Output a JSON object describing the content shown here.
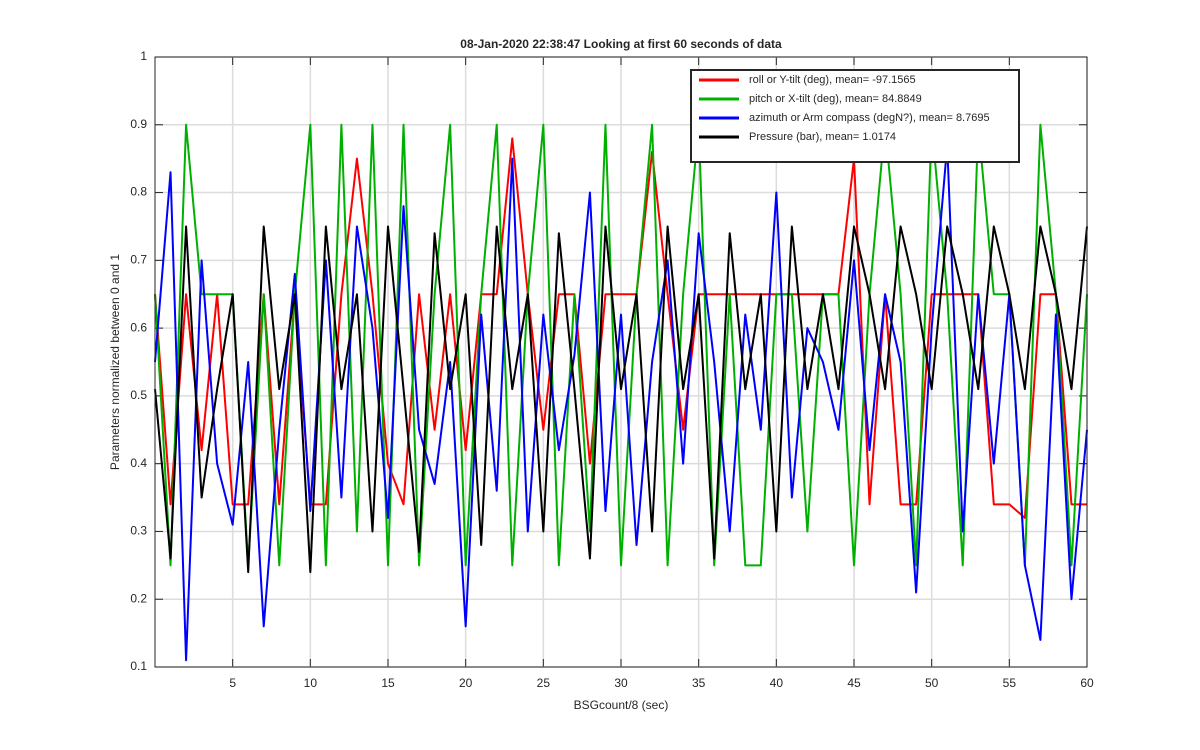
{
  "chart_data": {
    "type": "line",
    "title": "08-Jan-2020 22:38:47 Looking at first 60 seconds of data",
    "x_label": "BSGcount/8 (sec)",
    "y_label": "Parameters normalized between 0 and 1",
    "x": [
      0,
      1,
      2,
      3,
      4,
      5,
      6,
      7,
      8,
      9,
      10,
      11,
      12,
      13,
      14,
      15,
      16,
      17,
      18,
      19,
      20,
      21,
      22,
      23,
      24,
      25,
      26,
      27,
      28,
      29,
      30,
      31,
      32,
      33,
      34,
      35,
      36,
      37,
      38,
      39,
      40,
      41,
      42,
      43,
      44,
      45,
      46,
      47,
      48,
      49,
      50,
      51,
      52,
      53,
      54,
      55,
      56,
      57,
      58,
      59,
      60
    ],
    "series": [
      {
        "name": "roll or Y-tilt (deg), mean= -97.1565",
        "color": "#ff0000",
        "values": [
          0.65,
          0.34,
          0.65,
          0.42,
          0.65,
          0.34,
          0.34,
          0.65,
          0.34,
          0.65,
          0.34,
          0.34,
          0.65,
          0.85,
          0.65,
          0.4,
          0.34,
          0.65,
          0.45,
          0.65,
          0.42,
          0.65,
          0.65,
          0.88,
          0.65,
          0.45,
          0.65,
          0.65,
          0.4,
          0.65,
          0.65,
          0.65,
          0.86,
          0.65,
          0.45,
          0.65,
          0.65,
          0.65,
          0.65,
          0.65,
          0.65,
          0.65,
          0.65,
          0.65,
          0.65,
          0.85,
          0.34,
          0.65,
          0.34,
          0.34,
          0.65,
          0.65,
          0.65,
          0.65,
          0.34,
          0.34,
          0.32,
          0.65,
          0.65,
          0.34,
          0.34
        ]
      },
      {
        "name": "pitch or X-tilt (deg), mean= 84.8849",
        "color": "#00b000",
        "values": [
          0.65,
          0.25,
          0.9,
          0.65,
          0.65,
          0.65,
          0.25,
          0.65,
          0.25,
          0.65,
          0.9,
          0.25,
          0.9,
          0.3,
          0.9,
          0.25,
          0.9,
          0.25,
          0.65,
          0.9,
          0.25,
          0.65,
          0.9,
          0.25,
          0.65,
          0.9,
          0.25,
          0.65,
          0.3,
          0.9,
          0.25,
          0.65,
          0.9,
          0.25,
          0.65,
          0.9,
          0.25,
          0.65,
          0.25,
          0.25,
          0.65,
          0.65,
          0.3,
          0.65,
          0.65,
          0.25,
          0.65,
          0.9,
          0.65,
          0.25,
          0.9,
          0.65,
          0.25,
          0.9,
          0.65,
          0.65,
          0.25,
          0.9,
          0.65,
          0.25,
          0.65
        ]
      },
      {
        "name": "azimuth or Arm compass (degN?), mean= 8.7695",
        "color": "#0000ff",
        "values": [
          0.55,
          0.83,
          0.11,
          0.7,
          0.4,
          0.31,
          0.55,
          0.16,
          0.45,
          0.68,
          0.33,
          0.7,
          0.35,
          0.75,
          0.6,
          0.32,
          0.78,
          0.45,
          0.37,
          0.55,
          0.16,
          0.62,
          0.36,
          0.85,
          0.3,
          0.62,
          0.42,
          0.56,
          0.8,
          0.33,
          0.62,
          0.28,
          0.55,
          0.7,
          0.4,
          0.74,
          0.55,
          0.3,
          0.62,
          0.45,
          0.8,
          0.35,
          0.6,
          0.55,
          0.45,
          0.7,
          0.42,
          0.65,
          0.55,
          0.21,
          0.6,
          0.87,
          0.3,
          0.65,
          0.4,
          0.65,
          0.25,
          0.14,
          0.62,
          0.2,
          0.45
        ]
      },
      {
        "name": "Pressure (bar), mean= 1.0174",
        "color": "#000000",
        "values": [
          0.51,
          0.26,
          0.75,
          0.35,
          0.51,
          0.65,
          0.24,
          0.75,
          0.51,
          0.65,
          0.24,
          0.75,
          0.51,
          0.65,
          0.3,
          0.75,
          0.51,
          0.27,
          0.74,
          0.51,
          0.65,
          0.28,
          0.75,
          0.51,
          0.65,
          0.3,
          0.74,
          0.51,
          0.26,
          0.75,
          0.51,
          0.65,
          0.3,
          0.75,
          0.51,
          0.65,
          0.26,
          0.74,
          0.51,
          0.65,
          0.3,
          0.75,
          0.51,
          0.65,
          0.51,
          0.75,
          0.65,
          0.51,
          0.75,
          0.65,
          0.51,
          0.75,
          0.65,
          0.51,
          0.75,
          0.65,
          0.51,
          0.75,
          0.65,
          0.51,
          0.75
        ]
      }
    ],
    "xlim": [
      0,
      60
    ],
    "ylim": [
      0.1,
      1
    ],
    "xticks": [
      5,
      10,
      15,
      20,
      25,
      30,
      35,
      40,
      45,
      50,
      55,
      60
    ],
    "yticks": [
      0.1,
      0.2,
      0.3,
      0.4,
      0.5,
      0.6,
      0.7,
      0.8,
      0.9,
      1
    ],
    "grid": true,
    "legend": "northeast"
  }
}
